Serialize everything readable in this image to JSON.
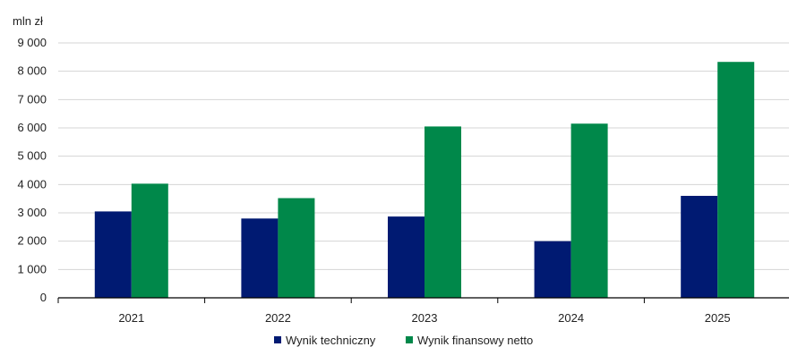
{
  "chart_data": {
    "type": "bar",
    "ylabel": "mln zł",
    "ylim": [
      0,
      9000
    ],
    "yticks": [
      0,
      1000,
      2000,
      3000,
      4000,
      5000,
      6000,
      7000,
      8000,
      9000
    ],
    "ytick_labels": [
      "0",
      "1 000",
      "2 000",
      "3 000",
      "4 000",
      "5 000",
      "6 000",
      "7 000",
      "8 000",
      "9 000"
    ],
    "categories": [
      "2021",
      "2022",
      "2023",
      "2024",
      "2025"
    ],
    "series": [
      {
        "name": "Wynik techniczny",
        "values": [
          3050,
          2800,
          2870,
          2000,
          3600
        ],
        "color": "#001a72"
      },
      {
        "name": "Wynik finansowy netto",
        "values": [
          4030,
          3520,
          6050,
          6150,
          8330
        ],
        "color": "#00884a"
      }
    ],
    "grid": true,
    "legend": "bottom"
  }
}
